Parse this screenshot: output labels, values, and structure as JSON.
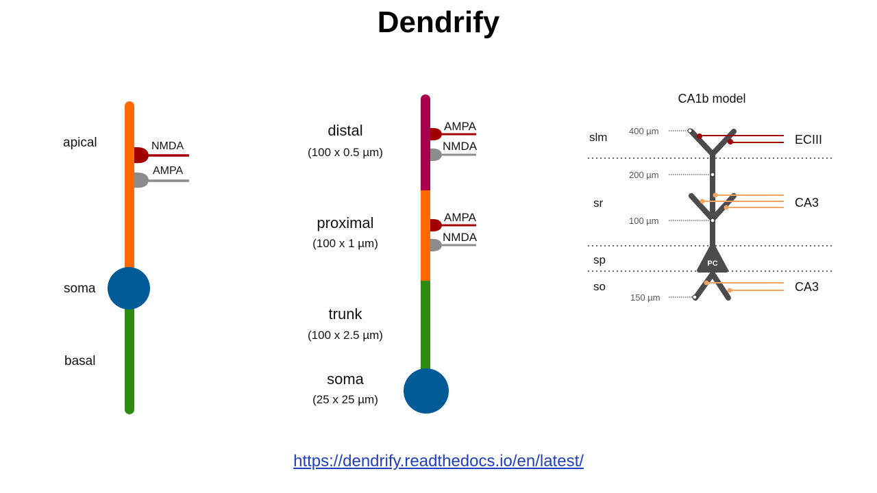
{
  "title": "Dendrify",
  "link": "https://dendrify.readthedocs.io/en/latest/",
  "colors": {
    "apical": "#ff6a00",
    "basal": "#2e8b10",
    "soma": "#005b96",
    "distal": "#a8004c",
    "nmda_red": "#a00000",
    "ampa_grey": "#8c8c8c",
    "ca1b_dendrite": "#4a4a4f",
    "ca3_input": "#f4a460"
  },
  "left_model": {
    "apical_label": "apical",
    "soma_label": "soma",
    "basal_label": "basal",
    "synapse_1": "NMDA",
    "synapse_2": "AMPA"
  },
  "middle_model": {
    "distal_name": "distal",
    "distal_dims": "(100 x 0.5 µm)",
    "distal_syn_1": "AMPA",
    "distal_syn_2": "NMDA",
    "proximal_name": "proximal",
    "proximal_dims": "(100 x 1 µm)",
    "proximal_syn_1": "AMPA",
    "proximal_syn_2": "NMDA",
    "trunk_name": "trunk",
    "trunk_dims": "(100 x 2.5 µm)",
    "soma_name": "soma",
    "soma_dims": "(25 x 25 µm)"
  },
  "ca1b_model": {
    "title": "CA1b model",
    "layers": [
      "slm",
      "sr",
      "sp",
      "so"
    ],
    "distances": [
      "400 µm",
      "200 µm",
      "100 µm",
      "150 µm"
    ],
    "inputs": [
      "ECIII",
      "CA3",
      "CA3"
    ],
    "cell_label": "PC"
  }
}
